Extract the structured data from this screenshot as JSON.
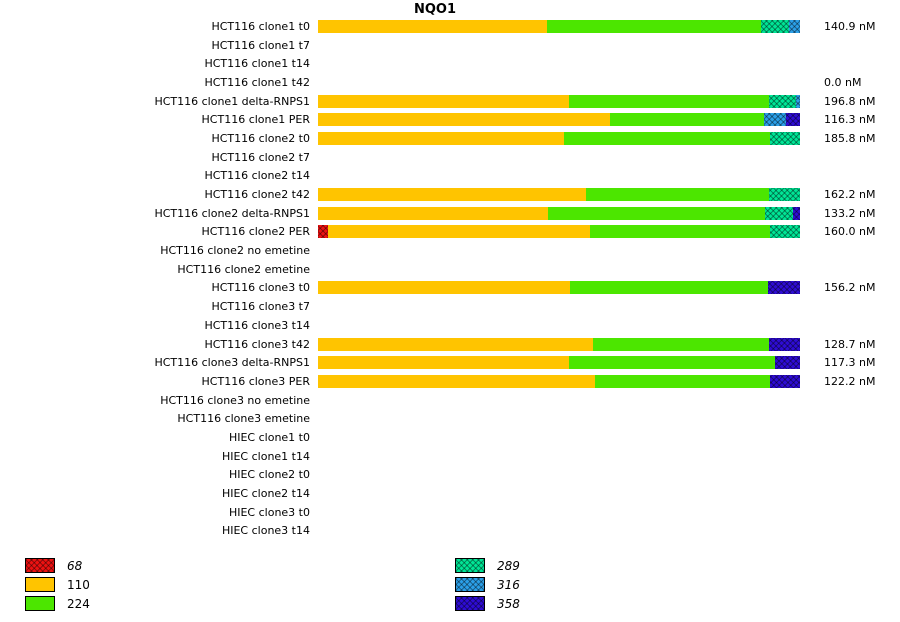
{
  "title": "NQO1",
  "unit": "nM",
  "palette": {
    "68": {
      "color": "#ee1111",
      "pattern": true
    },
    "110": {
      "color": "#ffc400",
      "pattern": false
    },
    "224": {
      "color": "#4ce600",
      "pattern": false
    },
    "289": {
      "color": "#00e596",
      "pattern": true
    },
    "316": {
      "color": "#2b9fe8",
      "pattern": true
    },
    "358": {
      "color": "#2e0cd4",
      "pattern": true
    }
  },
  "legend": {
    "columns": [
      [
        {
          "key": "68",
          "label": "68",
          "italic": true
        },
        {
          "key": "110",
          "label": "110",
          "italic": false
        },
        {
          "key": "224",
          "label": "224",
          "italic": false
        }
      ],
      [
        {
          "key": "289",
          "label": "289",
          "italic": true
        },
        {
          "key": "316",
          "label": "316",
          "italic": true
        },
        {
          "key": "358",
          "label": "358",
          "italic": true
        }
      ]
    ]
  },
  "chart_data": {
    "type": "bar",
    "orientation": "horizontal",
    "stacked": true,
    "normalized_to_100pct": true,
    "title": "NQO1",
    "series_keys": [
      "68",
      "110",
      "224",
      "289",
      "316",
      "358"
    ],
    "legend_position": "bottom",
    "categories": [
      "HCT116 clone1 t0",
      "HCT116 clone1 t7",
      "HCT116 clone1 t14",
      "HCT116 clone1 t42",
      "HCT116 clone1 delta-RNPS1",
      "HCT116 clone1 PER",
      "HCT116 clone2 t0",
      "HCT116 clone2 t7",
      "HCT116 clone2 t14",
      "HCT116 clone2 t42",
      "HCT116 clone2 delta-RNPS1",
      "HCT116 clone2 PER",
      "HCT116 clone2 no emetine",
      "HCT116 clone2 emetine",
      "HCT116 clone3 t0",
      "HCT116 clone3 t7",
      "HCT116 clone3 t14",
      "HCT116 clone3 t42",
      "HCT116 clone3 delta-RNPS1",
      "HCT116 clone3 PER",
      "HCT116 clone3 no emetine",
      "HCT116 clone3 emetine",
      "HIEC clone1 t0",
      "HIEC clone1 t14",
      "HIEC clone2 t0",
      "HIEC clone2 t14",
      "HIEC clone3 t0",
      "HIEC clone3 t14"
    ],
    "rows": [
      {
        "label": "HCT116 clone1 t0",
        "value": "140.9 nM",
        "segments": [
          {
            "key": "110",
            "pct": 47.5
          },
          {
            "key": "224",
            "pct": 44.5
          },
          {
            "key": "289",
            "pct": 5.8
          },
          {
            "key": "316",
            "pct": 2.2
          }
        ]
      },
      {
        "label": "HCT116 clone1 t7",
        "value": "",
        "segments": []
      },
      {
        "label": "HCT116 clone1 t14",
        "value": "",
        "segments": []
      },
      {
        "label": "HCT116 clone1 t42",
        "value": "0.0 nM",
        "segments": []
      },
      {
        "label": "HCT116 clone1 delta-RNPS1",
        "value": "196.8 nM",
        "segments": [
          {
            "key": "110",
            "pct": 52.0
          },
          {
            "key": "224",
            "pct": 41.5
          },
          {
            "key": "289",
            "pct": 5.6
          },
          {
            "key": "316",
            "pct": 0.9
          }
        ]
      },
      {
        "label": "HCT116 clone1 PER",
        "value": "116.3 nM",
        "segments": [
          {
            "key": "110",
            "pct": 60.5
          },
          {
            "key": "224",
            "pct": 32.0
          },
          {
            "key": "316",
            "pct": 4.7
          },
          {
            "key": "358",
            "pct": 2.8
          }
        ]
      },
      {
        "label": "HCT116 clone2 t0",
        "value": "185.8 nM",
        "segments": [
          {
            "key": "110",
            "pct": 51.0
          },
          {
            "key": "224",
            "pct": 42.8
          },
          {
            "key": "289",
            "pct": 6.2
          }
        ]
      },
      {
        "label": "HCT116 clone2 t7",
        "value": "",
        "segments": []
      },
      {
        "label": "HCT116 clone2 t14",
        "value": "",
        "segments": []
      },
      {
        "label": "HCT116 clone2 t42",
        "value": "162.2 nM",
        "segments": [
          {
            "key": "110",
            "pct": 55.5
          },
          {
            "key": "224",
            "pct": 38.0
          },
          {
            "key": "289",
            "pct": 6.5
          }
        ]
      },
      {
        "label": "HCT116 clone2 delta-RNPS1",
        "value": "133.2 nM",
        "segments": [
          {
            "key": "110",
            "pct": 47.8
          },
          {
            "key": "224",
            "pct": 45.0
          },
          {
            "key": "289",
            "pct": 5.8
          },
          {
            "key": "358",
            "pct": 1.4
          }
        ]
      },
      {
        "label": "HCT116 clone2 PER",
        "value": "160.0 nM",
        "segments": [
          {
            "key": "68",
            "pct": 2.0
          },
          {
            "key": "110",
            "pct": 54.5
          },
          {
            "key": "224",
            "pct": 37.3
          },
          {
            "key": "289",
            "pct": 6.2
          }
        ]
      },
      {
        "label": "HCT116 clone2 no emetine",
        "value": "",
        "segments": []
      },
      {
        "label": "HCT116 clone2 emetine",
        "value": "",
        "segments": []
      },
      {
        "label": "HCT116 clone3 t0",
        "value": "156.2 nM",
        "segments": [
          {
            "key": "110",
            "pct": 52.3
          },
          {
            "key": "224",
            "pct": 41.0
          },
          {
            "key": "358",
            "pct": 6.7
          }
        ]
      },
      {
        "label": "HCT116 clone3 t7",
        "value": "",
        "segments": []
      },
      {
        "label": "HCT116 clone3 t14",
        "value": "",
        "segments": []
      },
      {
        "label": "HCT116 clone3 t42",
        "value": "128.7 nM",
        "segments": [
          {
            "key": "110",
            "pct": 57.0
          },
          {
            "key": "224",
            "pct": 36.5
          },
          {
            "key": "358",
            "pct": 6.5
          }
        ]
      },
      {
        "label": "HCT116 clone3 delta-RNPS1",
        "value": "117.3 nM",
        "segments": [
          {
            "key": "110",
            "pct": 52.0
          },
          {
            "key": "224",
            "pct": 42.8
          },
          {
            "key": "358",
            "pct": 5.2
          }
        ]
      },
      {
        "label": "HCT116 clone3 PER",
        "value": "122.2 nM",
        "segments": [
          {
            "key": "110",
            "pct": 57.5
          },
          {
            "key": "224",
            "pct": 36.3
          },
          {
            "key": "358",
            "pct": 6.2
          }
        ]
      },
      {
        "label": "HCT116 clone3 no emetine",
        "value": "",
        "segments": []
      },
      {
        "label": "HCT116 clone3 emetine",
        "value": "",
        "segments": []
      },
      {
        "label": "HIEC clone1 t0",
        "value": "",
        "segments": []
      },
      {
        "label": "HIEC clone1 t14",
        "value": "",
        "segments": []
      },
      {
        "label": "HIEC clone2 t0",
        "value": "",
        "segments": []
      },
      {
        "label": "HIEC clone2 t14",
        "value": "",
        "segments": []
      },
      {
        "label": "HIEC clone3 t0",
        "value": "",
        "segments": []
      },
      {
        "label": "HIEC clone3 t14",
        "value": "",
        "segments": []
      }
    ]
  }
}
